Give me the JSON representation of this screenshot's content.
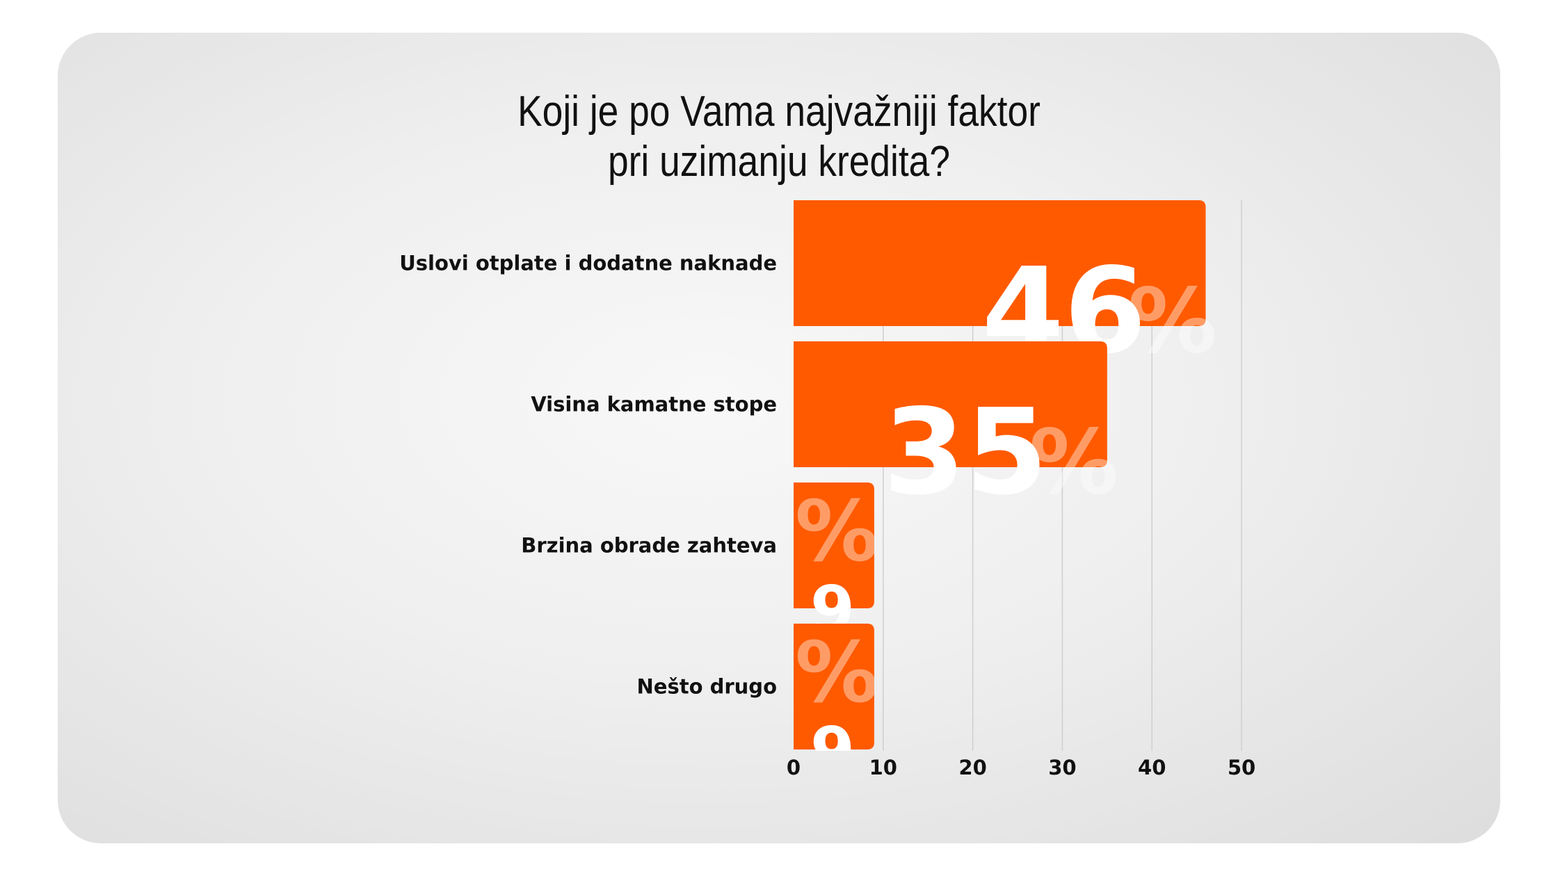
{
  "chart_data": {
    "type": "bar",
    "orientation": "horizontal",
    "title_lines": [
      "Koji je po Vama najvažniji faktor",
      "pri uzimanju kredita?"
    ],
    "categories": [
      "Uslovi otplate i dodatne naknade",
      "Visina kamatne stope",
      "Brzina obrade zahteva",
      "Nešto drugo"
    ],
    "values": [
      46,
      35,
      9,
      9
    ],
    "data_labels": [
      "46",
      "35",
      "9",
      "9"
    ],
    "percent_sign": "%",
    "xlim": [
      0,
      50
    ],
    "xticks": [
      "0",
      "10",
      "20",
      "30",
      "40",
      "50"
    ],
    "grid": true,
    "bar_color": "#ff5a00",
    "grid_color": "#cfcfcf",
    "background": "#eeeeee"
  }
}
